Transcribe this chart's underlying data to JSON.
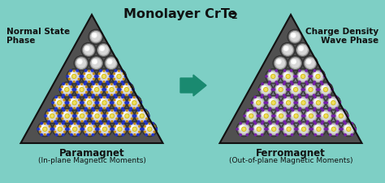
{
  "title": "Monolayer CrTe",
  "title_sub": "2",
  "bg_color": "#7ecfc5",
  "left_label_line1": "Normal State",
  "left_label_line2": "Phase",
  "right_label_line1": "Charge Density",
  "right_label_line2": "Wave Phase",
  "bottom_left_bold": "Paramagnet",
  "bottom_left_sub": "(In-plane Magnetic Moments)",
  "bottom_right_bold": "Ferromagnet",
  "bottom_right_sub": "(Out-of-plane Magnetic Moments)",
  "arrow_color": "#1a8a70",
  "tri_face": "#404040",
  "atom_outer": "#303030",
  "atom_mid": "#888888",
  "atom_inner": "#dddddd",
  "atom_highlight": "#f8f8f8",
  "yellow_color": "#d4c020",
  "blue_color": "#2233cc",
  "orange_color": "#dd6600",
  "purple_color": "#7722aa",
  "blue_line_color": "#2233aa",
  "purple_line_color": "#6633aa"
}
